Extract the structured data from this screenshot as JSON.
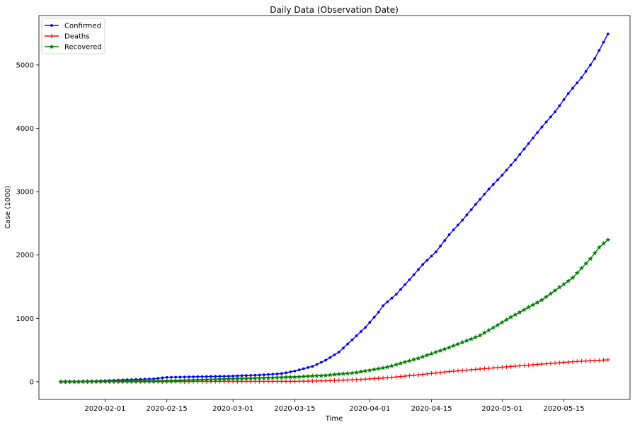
{
  "chart_data": {
    "type": "line",
    "title": "Daily Data (Observation Date)",
    "xlabel": "Time",
    "ylabel": "Case (1000)",
    "x_start": "2020-01-22",
    "x_end": "2020-05-25",
    "xlim": [
      "2020-01-17",
      "2020-05-30"
    ],
    "ylim": [
      -280,
      5780
    ],
    "x_ticks": [
      "2020-02-01",
      "2020-02-15",
      "2020-03-01",
      "2020-03-15",
      "2020-04-01",
      "2020-04-15",
      "2020-05-01",
      "2020-05-15"
    ],
    "y_ticks": [
      0,
      1000,
      2000,
      3000,
      4000,
      5000
    ],
    "grid": false,
    "legend_position": "top-left",
    "series": [
      {
        "name": "Confirmed",
        "color": "#0000ff",
        "marker": "dot",
        "points": [
          [
            "2020-01-22",
            0
          ],
          [
            "2020-01-29",
            6
          ],
          [
            "2020-02-05",
            28
          ],
          [
            "2020-02-12",
            45
          ],
          [
            "2020-02-15",
            69
          ],
          [
            "2020-02-20",
            76
          ],
          [
            "2020-02-29",
            87
          ],
          [
            "2020-03-07",
            105
          ],
          [
            "2020-03-12",
            128
          ],
          [
            "2020-03-15",
            168
          ],
          [
            "2020-03-19",
            242
          ],
          [
            "2020-03-22",
            338
          ],
          [
            "2020-03-25",
            468
          ],
          [
            "2020-03-28",
            660
          ],
          [
            "2020-03-31",
            857
          ],
          [
            "2020-04-03",
            1097
          ],
          [
            "2020-04-04",
            1200
          ],
          [
            "2020-04-07",
            1380
          ],
          [
            "2020-04-10",
            1610
          ],
          [
            "2020-04-13",
            1850
          ],
          [
            "2020-04-16",
            2050
          ],
          [
            "2020-04-19",
            2320
          ],
          [
            "2020-04-22",
            2550
          ],
          [
            "2020-04-25",
            2800
          ],
          [
            "2020-04-28",
            3040
          ],
          [
            "2020-05-01",
            3260
          ],
          [
            "2020-05-04",
            3500
          ],
          [
            "2020-05-07",
            3760
          ],
          [
            "2020-05-10",
            4020
          ],
          [
            "2020-05-13",
            4260
          ],
          [
            "2020-05-16",
            4550
          ],
          [
            "2020-05-19",
            4800
          ],
          [
            "2020-05-22",
            5100
          ],
          [
            "2020-05-25",
            5490
          ]
        ]
      },
      {
        "name": "Deaths",
        "color": "#ff0000",
        "marker": "plus",
        "points": [
          [
            "2020-01-22",
            0
          ],
          [
            "2020-03-15",
            6
          ],
          [
            "2020-03-22",
            14
          ],
          [
            "2020-03-29",
            32
          ],
          [
            "2020-04-05",
            62
          ],
          [
            "2020-04-12",
            108
          ],
          [
            "2020-04-19",
            160
          ],
          [
            "2020-04-26",
            200
          ],
          [
            "2020-05-03",
            240
          ],
          [
            "2020-05-10",
            278
          ],
          [
            "2020-05-17",
            315
          ],
          [
            "2020-05-25",
            345
          ]
        ]
      },
      {
        "name": "Recovered",
        "color": "#008000",
        "marker": "star",
        "points": [
          [
            "2020-01-22",
            0
          ],
          [
            "2020-02-15",
            12
          ],
          [
            "2020-03-01",
            45
          ],
          [
            "2020-03-15",
            75
          ],
          [
            "2020-03-22",
            100
          ],
          [
            "2020-03-29",
            145
          ],
          [
            "2020-04-05",
            230
          ],
          [
            "2020-04-12",
            370
          ],
          [
            "2020-04-19",
            540
          ],
          [
            "2020-04-26",
            730
          ],
          [
            "2020-05-03",
            1020
          ],
          [
            "2020-05-10",
            1290
          ],
          [
            "2020-05-17",
            1640
          ],
          [
            "2020-05-21",
            1940
          ],
          [
            "2020-05-23",
            2120
          ],
          [
            "2020-05-25",
            2240
          ]
        ]
      }
    ]
  }
}
